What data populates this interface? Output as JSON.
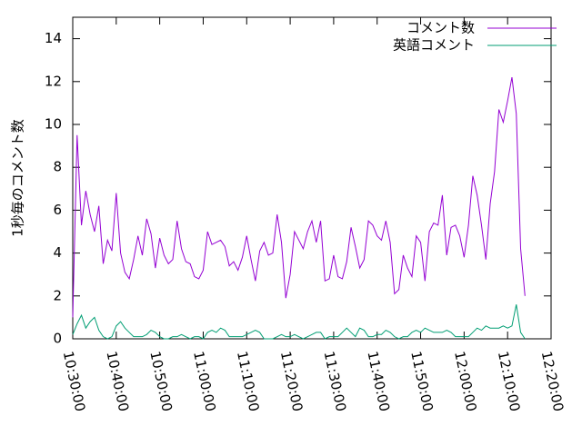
{
  "chart_data": {
    "type": "line",
    "ylabel": "1秒毎のコメント数",
    "legend": "top-right",
    "xlim": [
      "10:30:00",
      "12:20:00"
    ],
    "xticks": [
      "10:30:00",
      "10:40:00",
      "10:50:00",
      "11:00:00",
      "11:10:00",
      "11:20:00",
      "11:30:00",
      "11:40:00",
      "11:50:00",
      "12:00:00",
      "12:10:00",
      "12:20:00"
    ],
    "ylim": [
      0,
      15
    ],
    "yticks": [
      0,
      2,
      4,
      6,
      8,
      10,
      12,
      14
    ],
    "grid": false,
    "x": [
      "10:30:00",
      "10:31:00",
      "10:32:00",
      "10:33:00",
      "10:34:00",
      "10:35:00",
      "10:36:00",
      "10:37:00",
      "10:38:00",
      "10:39:00",
      "10:40:00",
      "10:41:00",
      "10:42:00",
      "10:43:00",
      "10:44:00",
      "10:45:00",
      "10:46:00",
      "10:47:00",
      "10:48:00",
      "10:49:00",
      "10:50:00",
      "10:51:00",
      "10:52:00",
      "10:53:00",
      "10:54:00",
      "10:55:00",
      "10:56:00",
      "10:57:00",
      "10:58:00",
      "10:59:00",
      "11:00:00",
      "11:01:00",
      "11:02:00",
      "11:03:00",
      "11:04:00",
      "11:05:00",
      "11:06:00",
      "11:07:00",
      "11:08:00",
      "11:09:00",
      "11:10:00",
      "11:11:00",
      "11:12:00",
      "11:13:00",
      "11:14:00",
      "11:15:00",
      "11:16:00",
      "11:17:00",
      "11:18:00",
      "11:19:00",
      "11:20:00",
      "11:21:00",
      "11:22:00",
      "11:23:00",
      "11:24:00",
      "11:25:00",
      "11:26:00",
      "11:27:00",
      "11:28:00",
      "11:29:00",
      "11:30:00",
      "11:31:00",
      "11:32:00",
      "11:33:00",
      "11:34:00",
      "11:35:00",
      "11:36:00",
      "11:37:00",
      "11:38:00",
      "11:39:00",
      "11:40:00",
      "11:41:00",
      "11:42:00",
      "11:43:00",
      "11:44:00",
      "11:45:00",
      "11:46:00",
      "11:47:00",
      "11:48:00",
      "11:49:00",
      "11:50:00",
      "11:51:00",
      "11:52:00",
      "11:53:00",
      "11:54:00",
      "11:55:00",
      "11:56:00",
      "11:57:00",
      "11:58:00",
      "11:59:00",
      "12:00:00",
      "12:01:00",
      "12:02:00",
      "12:03:00",
      "12:04:00",
      "12:05:00",
      "12:06:00",
      "12:07:00",
      "12:08:00",
      "12:09:00",
      "12:10:00",
      "12:11:00",
      "12:12:00",
      "12:13:00",
      "12:14:00"
    ],
    "series": [
      {
        "name": "コメント数",
        "color": "#9400d3",
        "values": [
          1.0,
          9.5,
          5.3,
          6.9,
          5.8,
          5.0,
          6.2,
          3.5,
          4.6,
          4.1,
          6.8,
          4.0,
          3.1,
          2.8,
          3.7,
          4.8,
          3.9,
          5.6,
          4.9,
          3.3,
          4.7,
          3.9,
          3.5,
          3.7,
          5.5,
          4.2,
          3.6,
          3.5,
          2.9,
          2.8,
          3.2,
          5.0,
          4.4,
          4.5,
          4.6,
          4.3,
          3.4,
          3.6,
          3.2,
          3.8,
          4.8,
          3.7,
          2.7,
          4.1,
          4.5,
          3.9,
          4.0,
          5.8,
          4.5,
          1.9,
          3.0,
          5.0,
          4.6,
          4.2,
          5.0,
          5.5,
          4.5,
          5.5,
          2.7,
          2.8,
          3.9,
          2.9,
          2.8,
          3.6,
          5.2,
          4.3,
          3.3,
          3.7,
          5.5,
          5.3,
          4.8,
          4.6,
          5.5,
          4.5,
          2.1,
          2.3,
          3.9,
          3.3,
          2.9,
          4.8,
          4.5,
          2.7,
          5.0,
          5.4,
          5.3,
          6.7,
          3.9,
          5.2,
          5.3,
          4.8,
          3.8,
          5.3,
          7.6,
          6.7,
          5.3,
          3.7,
          6.3,
          7.8,
          10.7,
          10.1,
          11.1,
          12.2,
          10.5,
          4.2,
          2.0
        ]
      },
      {
        "name": "英語コメント",
        "color": "#009e73",
        "values": [
          0.2,
          0.7,
          1.1,
          0.5,
          0.8,
          1.0,
          0.4,
          0.1,
          0.0,
          0.1,
          0.6,
          0.8,
          0.5,
          0.3,
          0.1,
          0.1,
          0.1,
          0.2,
          0.4,
          0.3,
          0.1,
          0.0,
          0.0,
          0.1,
          0.1,
          0.2,
          0.1,
          0.0,
          0.1,
          0.1,
          0.0,
          0.3,
          0.4,
          0.3,
          0.5,
          0.4,
          0.1,
          0.1,
          0.1,
          0.1,
          0.2,
          0.3,
          0.4,
          0.3,
          0.0,
          0.0,
          0.0,
          0.1,
          0.2,
          0.1,
          0.1,
          0.2,
          0.1,
          0.0,
          0.1,
          0.2,
          0.3,
          0.3,
          0.0,
          0.1,
          0.1,
          0.1,
          0.3,
          0.5,
          0.3,
          0.1,
          0.5,
          0.4,
          0.1,
          0.1,
          0.2,
          0.2,
          0.4,
          0.3,
          0.1,
          0.0,
          0.1,
          0.1,
          0.3,
          0.4,
          0.3,
          0.5,
          0.4,
          0.3,
          0.3,
          0.3,
          0.4,
          0.3,
          0.1,
          0.1,
          0.1,
          0.1,
          0.3,
          0.5,
          0.4,
          0.6,
          0.5,
          0.5,
          0.5,
          0.6,
          0.5,
          0.6,
          1.6,
          0.3,
          0.0
        ]
      }
    ]
  }
}
